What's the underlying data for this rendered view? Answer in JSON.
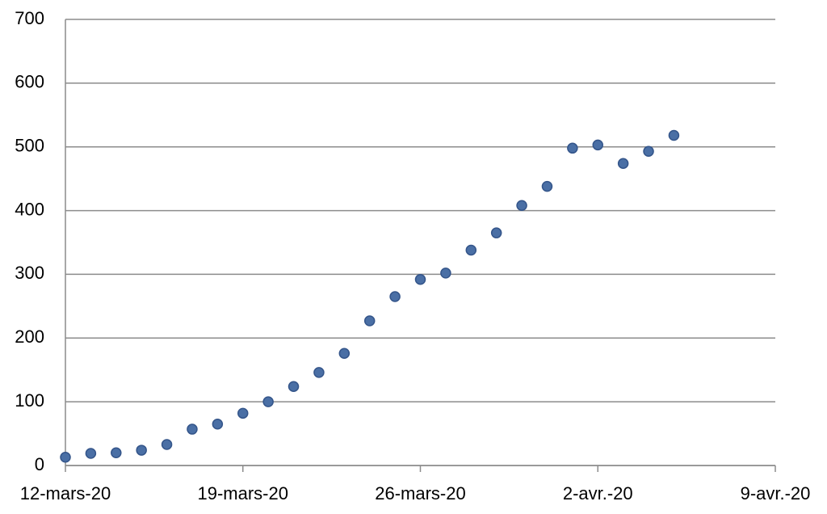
{
  "chart_data": {
    "type": "scatter",
    "x": [
      "2020-03-12",
      "2020-03-13",
      "2020-03-14",
      "2020-03-15",
      "2020-03-16",
      "2020-03-17",
      "2020-03-18",
      "2020-03-19",
      "2020-03-20",
      "2020-03-21",
      "2020-03-22",
      "2020-03-23",
      "2020-03-24",
      "2020-03-25",
      "2020-03-26",
      "2020-03-27",
      "2020-03-28",
      "2020-03-29",
      "2020-03-30",
      "2020-03-31",
      "2020-04-01",
      "2020-04-02",
      "2020-04-03",
      "2020-04-04",
      "2020-04-05"
    ],
    "values": [
      13,
      19,
      20,
      24,
      33,
      57,
      65,
      82,
      100,
      124,
      146,
      176,
      227,
      265,
      292,
      302,
      338,
      365,
      408,
      438,
      498,
      503,
      474,
      493,
      518
    ],
    "color": "#4a6fa5",
    "xlim": [
      "2020-03-12",
      "2020-04-09"
    ],
    "xticks": [
      {
        "value": "2020-03-12",
        "label": "12-mars-20"
      },
      {
        "value": "2020-03-19",
        "label": "19-mars-20"
      },
      {
        "value": "2020-03-26",
        "label": "26-mars-20"
      },
      {
        "value": "2020-04-02",
        "label": "2-avr.-20"
      },
      {
        "value": "2020-04-09",
        "label": "9-avr.-20"
      }
    ],
    "ylim": [
      0,
      700
    ],
    "yticks": [
      0,
      100,
      200,
      300,
      400,
      500,
      600,
      700
    ],
    "grid": true
  }
}
